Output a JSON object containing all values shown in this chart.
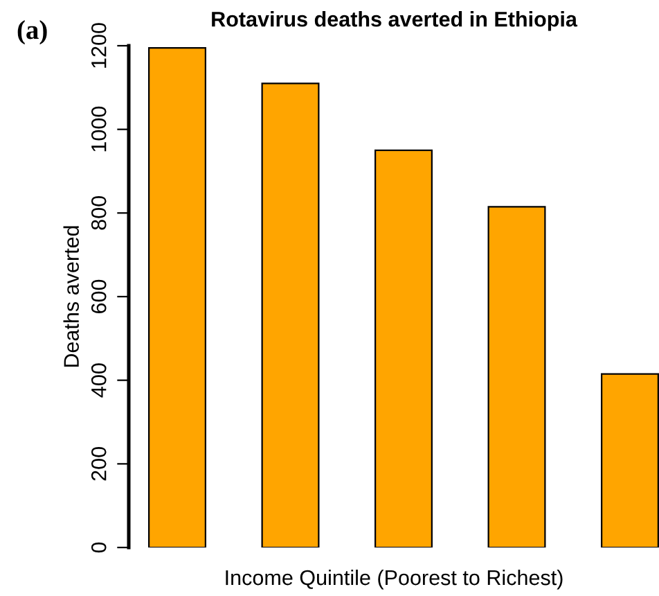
{
  "chart_data": {
    "type": "bar",
    "title": "Rotavirus deaths averted in Ethiopia",
    "xlabel": "Income Quintile (Poorest to Richest)",
    "ylabel": "Deaths averted",
    "categories": [
      null,
      null,
      null,
      null,
      null
    ],
    "values": [
      1195,
      1110,
      950,
      815,
      415
    ],
    "color": "#ffa500",
    "ylim": [
      0,
      1200
    ],
    "yticks": [
      0,
      200,
      400,
      600,
      800,
      1000,
      1200
    ],
    "grid": false,
    "annotations": [
      "(a)"
    ]
  }
}
